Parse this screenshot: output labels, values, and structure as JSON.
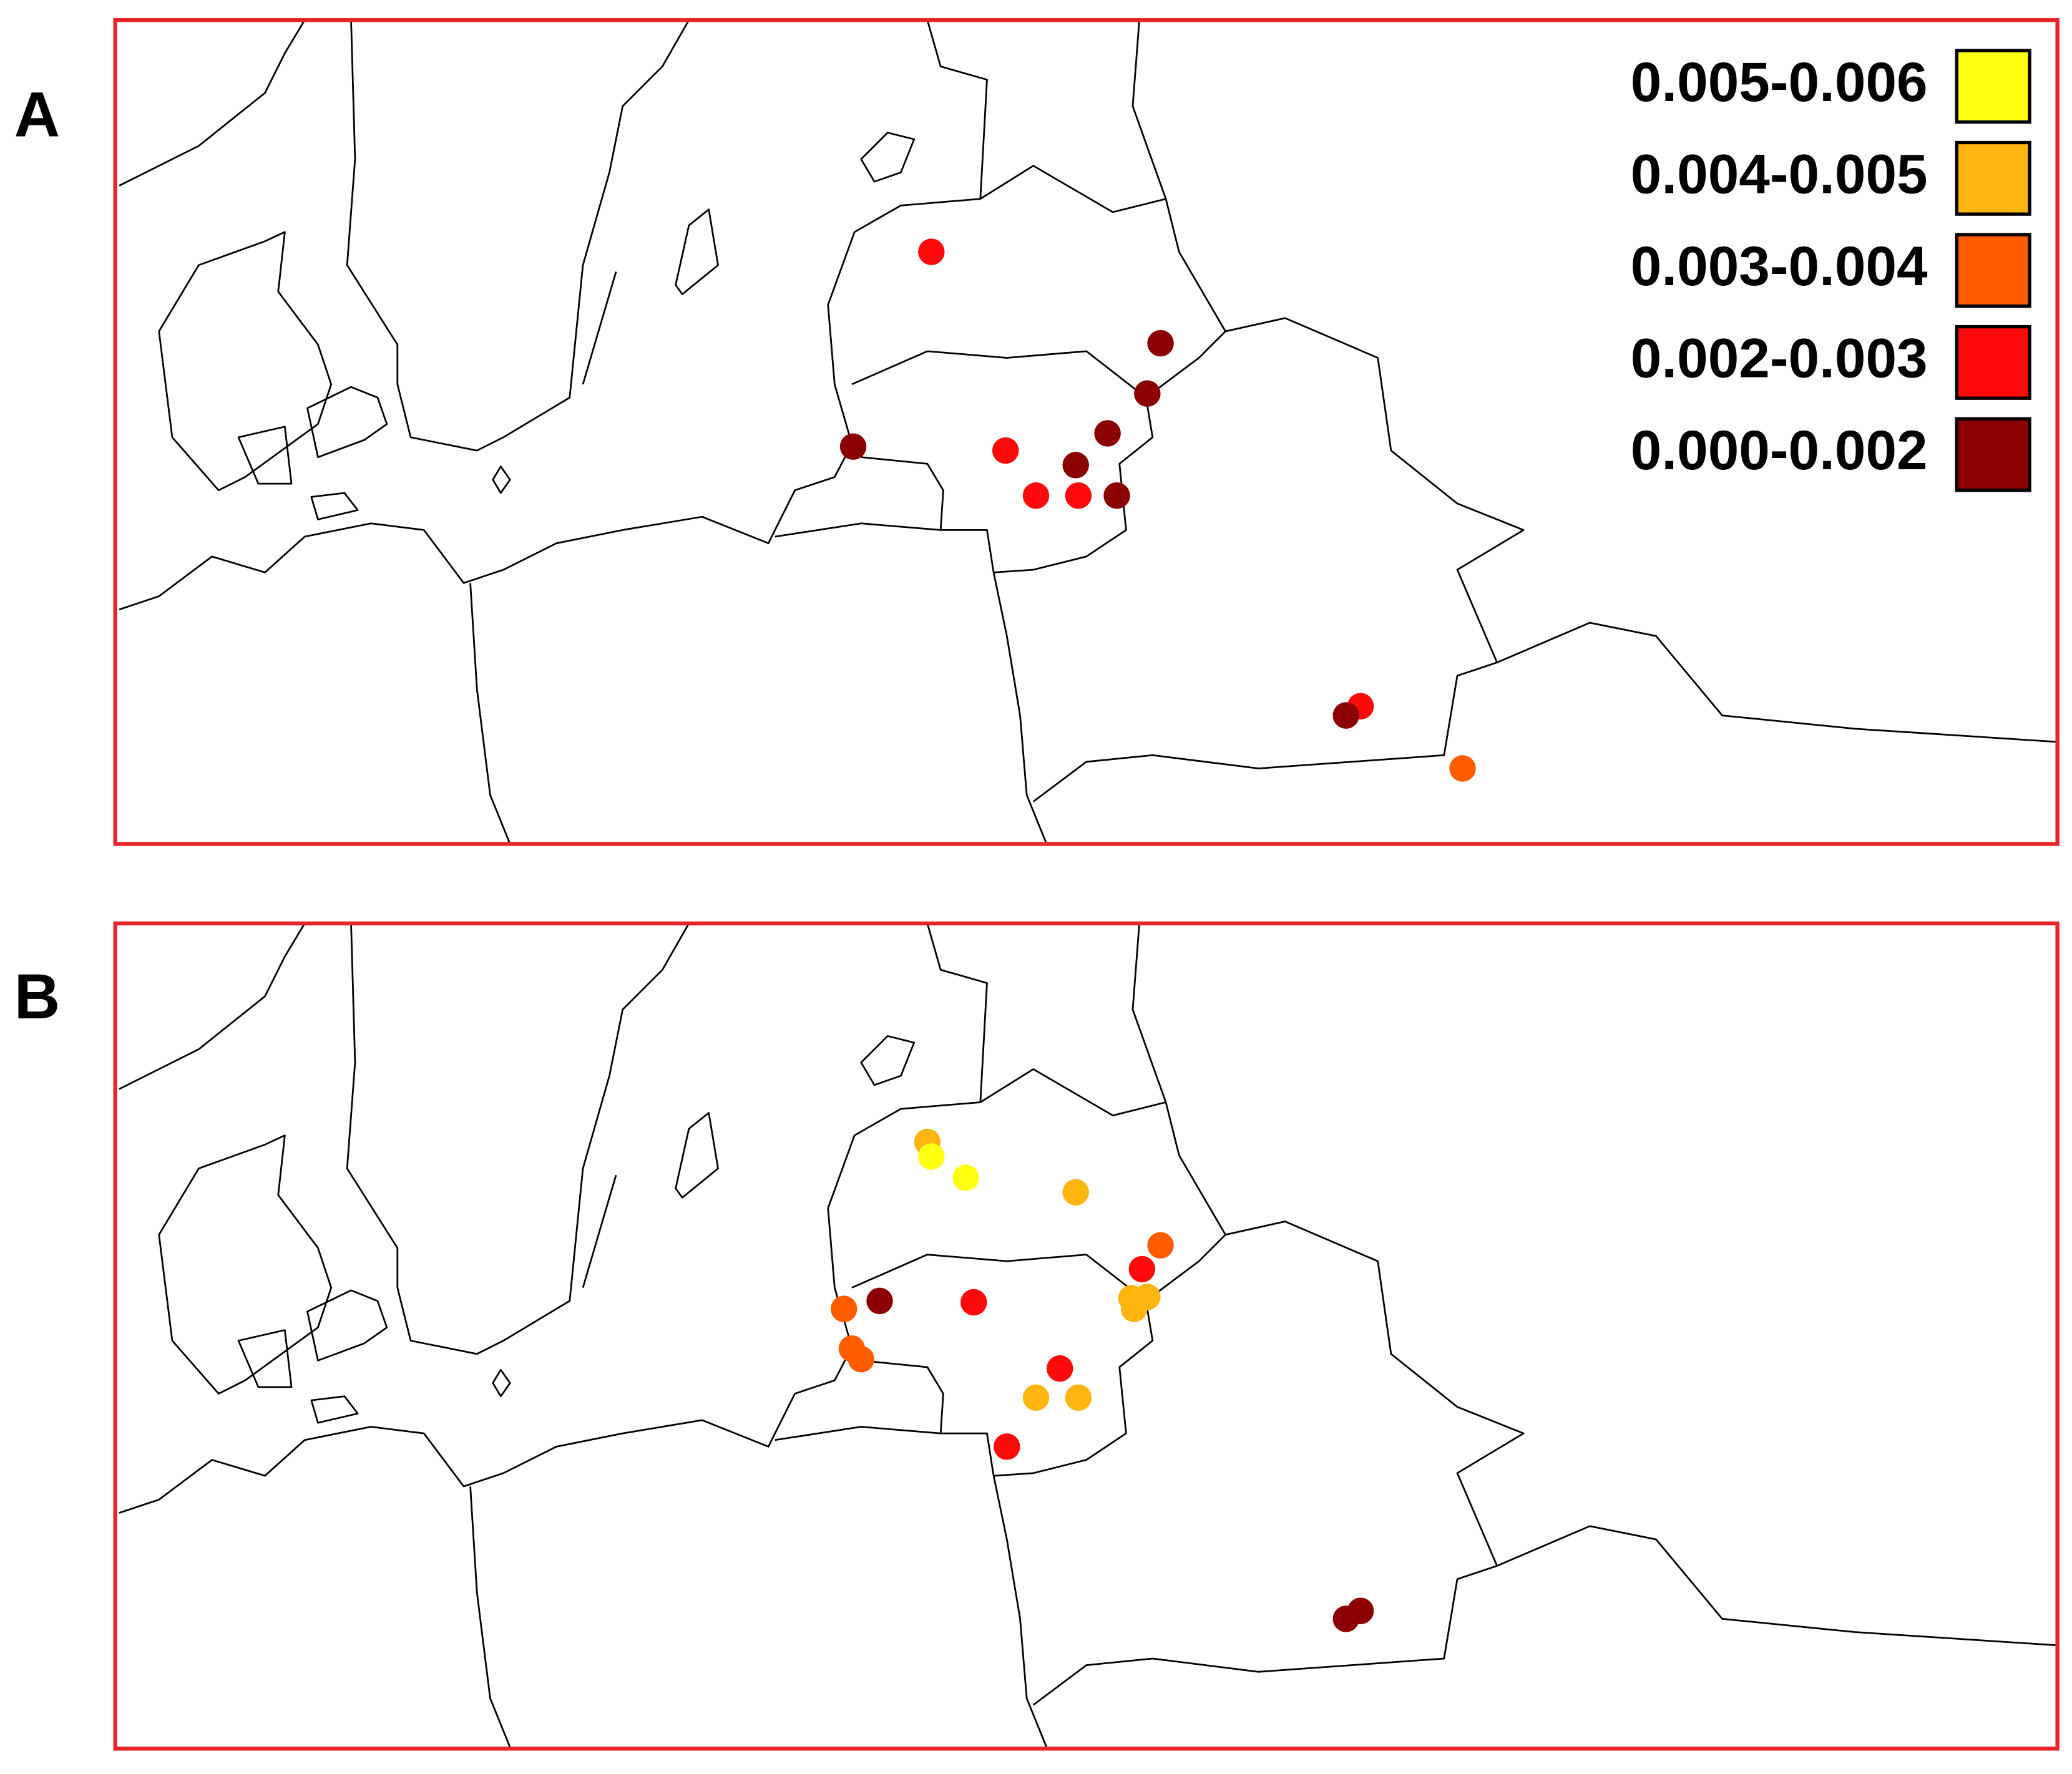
{
  "panel_labels": [
    "A",
    "B"
  ],
  "legend": [
    {
      "label": "0.005-0.006",
      "color": "#ffff10"
    },
    {
      "label": "0.004-0.005",
      "color": "#ffb50f"
    },
    {
      "label": "0.003-0.004",
      "color": "#ff5c00"
    },
    {
      "label": "0.002-0.003",
      "color": "#ff0a0a"
    },
    {
      "label": "0.000-0.002",
      "color": "#8b0000"
    }
  ]
}
